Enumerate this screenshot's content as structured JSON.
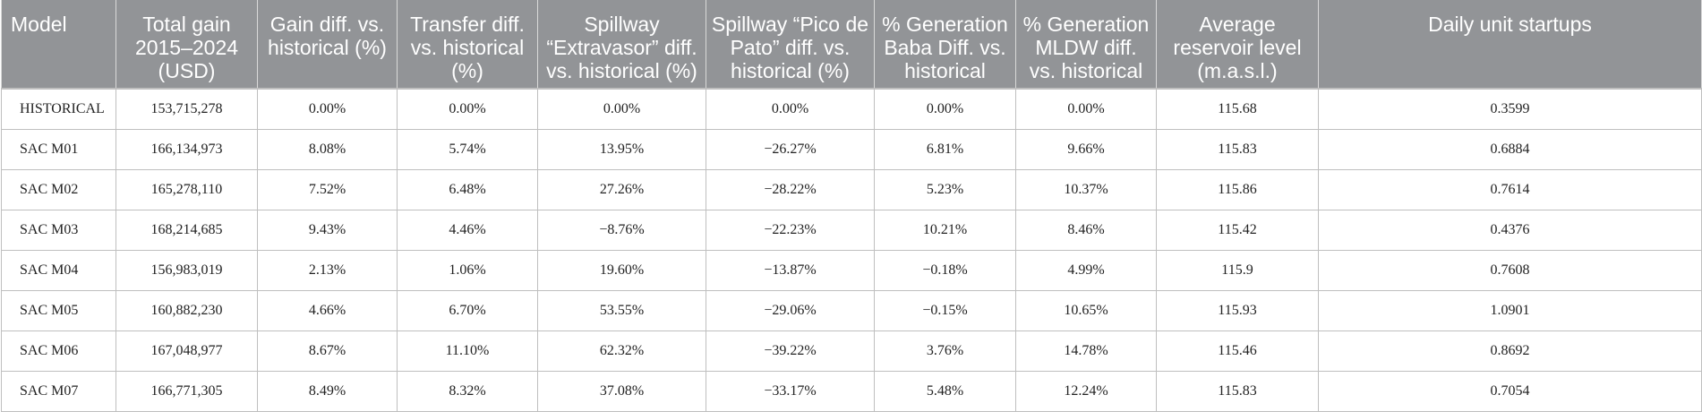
{
  "table": {
    "headers": [
      "Model",
      "Total gain 2015–2024 (USD)",
      "Gain diff. vs. historical (%)",
      "Transfer diff. vs. historical (%)",
      "Spillway “Extravasor” diff. vs. historical (%)",
      "Spillway “Pico de Pato” diff. vs. historical (%)",
      "% Generation Baba Diff. vs. historical",
      "% Generation MLDW diff. vs. historical",
      "Average reservoir level (m.a.s.l.)",
      "Daily unit startups"
    ],
    "rows": [
      [
        "HISTORICAL",
        "153,715,278",
        "0.00%",
        "0.00%",
        "0.00%",
        "0.00%",
        "0.00%",
        "0.00%",
        "115.68",
        "0.3599"
      ],
      [
        "SAC M01",
        "166,134,973",
        "8.08%",
        "5.74%",
        "13.95%",
        "−26.27%",
        "6.81%",
        "9.66%",
        "115.83",
        "0.6884"
      ],
      [
        "SAC M02",
        "165,278,110",
        "7.52%",
        "6.48%",
        "27.26%",
        "−28.22%",
        "5.23%",
        "10.37%",
        "115.86",
        "0.7614"
      ],
      [
        "SAC M03",
        "168,214,685",
        "9.43%",
        "4.46%",
        "−8.76%",
        "−22.23%",
        "10.21%",
        "8.46%",
        "115.42",
        "0.4376"
      ],
      [
        "SAC M04",
        "156,983,019",
        "2.13%",
        "1.06%",
        "19.60%",
        "−13.87%",
        "−0.18%",
        "4.99%",
        "115.9",
        "0.7608"
      ],
      [
        "SAC M05",
        "160,882,230",
        "4.66%",
        "6.70%",
        "53.55%",
        "−29.06%",
        "−0.15%",
        "10.65%",
        "115.93",
        "1.0901"
      ],
      [
        "SAC M06",
        "167,048,977",
        "8.67%",
        "11.10%",
        "62.32%",
        "−39.22%",
        "3.76%",
        "14.78%",
        "115.46",
        "0.8692"
      ],
      [
        "SAC M07",
        "166,771,305",
        "8.49%",
        "8.32%",
        "37.08%",
        "−33.17%",
        "5.48%",
        "12.24%",
        "115.83",
        "0.7054"
      ]
    ]
  }
}
